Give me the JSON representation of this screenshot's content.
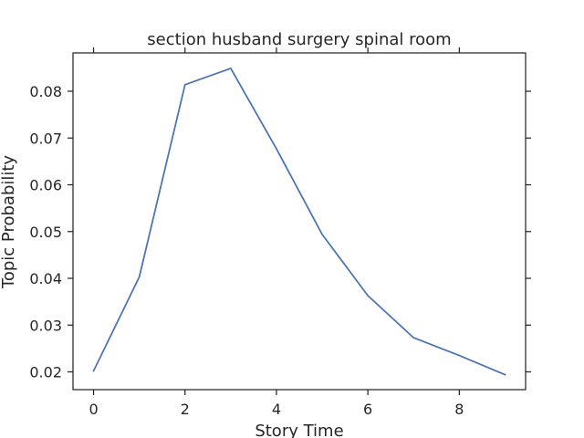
{
  "chart_data": {
    "type": "line",
    "title": "section husband surgery spinal room",
    "xlabel": "Story Time",
    "ylabel": "Topic Probability",
    "x": [
      0,
      1,
      2,
      3,
      4,
      5,
      6,
      7,
      8,
      9
    ],
    "series": [
      {
        "values": [
          0.0202,
          0.0403,
          0.0814,
          0.0849,
          0.0677,
          0.0494,
          0.0363,
          0.0273,
          0.0235,
          0.0194
        ],
        "color": "#4c72b0"
      }
    ],
    "xlim": [
      -0.45,
      9.45
    ],
    "ylim": [
      0.0162,
      0.0882
    ],
    "xticks": [
      0,
      2,
      4,
      6,
      8
    ],
    "xtick_labels": [
      "0",
      "2",
      "4",
      "6",
      "8"
    ],
    "yticks": [
      0.02,
      0.03,
      0.04,
      0.05,
      0.06,
      0.07,
      0.08
    ],
    "ytick_labels": [
      "0.02",
      "0.03",
      "0.04",
      "0.05",
      "0.06",
      "0.07",
      "0.08"
    ],
    "grid": false,
    "legend": "none"
  }
}
